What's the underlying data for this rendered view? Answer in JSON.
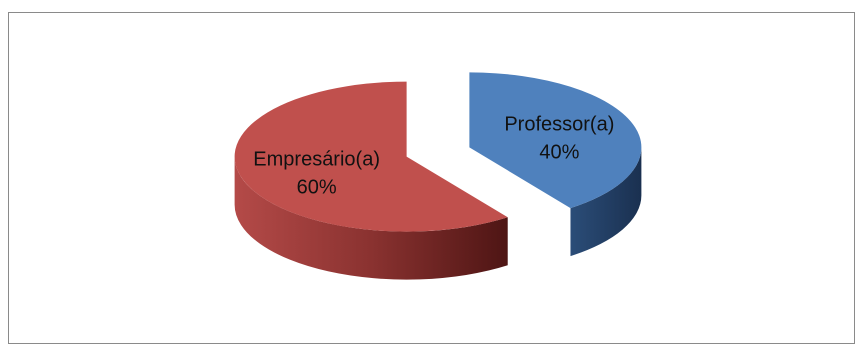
{
  "chart_data": {
    "type": "pie",
    "style": "3d-exploded",
    "categories": [
      "Professor(a)",
      "Empresário(a)"
    ],
    "values": [
      40,
      60
    ],
    "value_labels": [
      "40%",
      "60%"
    ],
    "colors": [
      "#4F81BD",
      "#C0504D"
    ],
    "legend": "none",
    "title": ""
  }
}
